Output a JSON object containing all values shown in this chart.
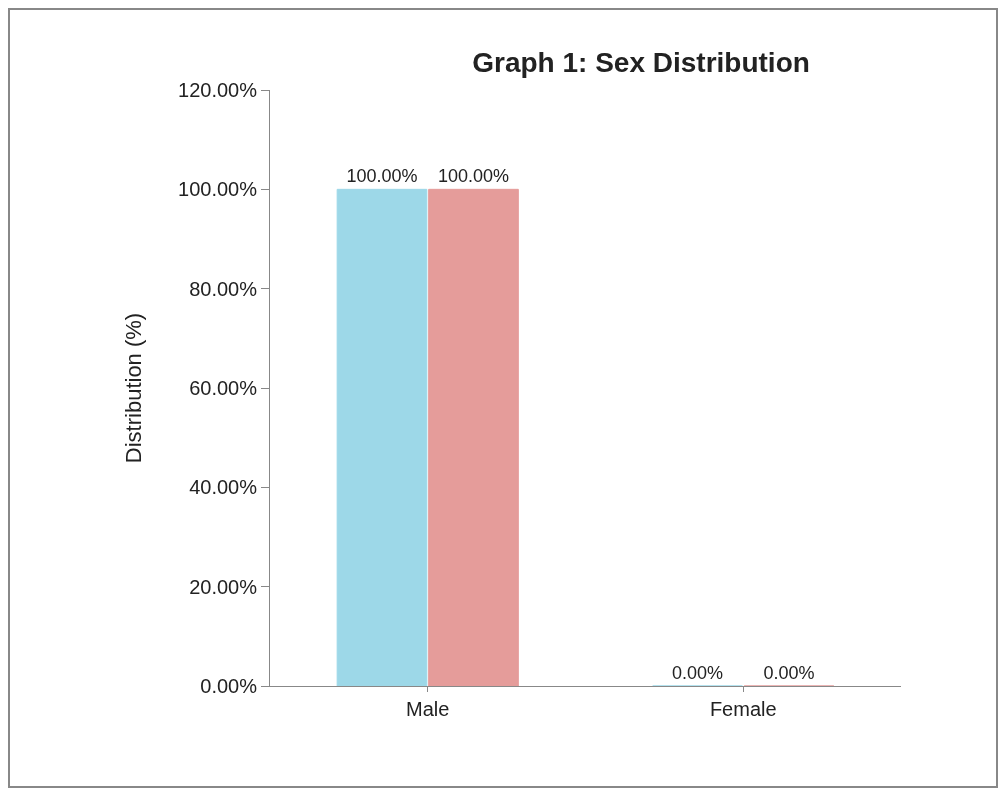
{
  "chart_data": {
    "type": "bar",
    "title": "Graph 1: Sex Distribution",
    "ylabel": "Distribution (%)",
    "categories": [
      "Male",
      "Female"
    ],
    "series": [
      {
        "color": "#9dd8e8",
        "values": [
          100,
          0
        ],
        "value_labels": [
          "100.00%",
          "0.00%"
        ]
      },
      {
        "color": "#e59c9a",
        "values": [
          100,
          0
        ],
        "value_labels": [
          "100.00%",
          "0.00%"
        ]
      }
    ],
    "ylim": [
      0,
      120
    ],
    "yticks": [
      {
        "value": 0,
        "label": "0.00%"
      },
      {
        "value": 20,
        "label": "20.00%"
      },
      {
        "value": 40,
        "label": "40.00%"
      },
      {
        "value": 60,
        "label": "60.00%"
      },
      {
        "value": 80,
        "label": "80.00%"
      },
      {
        "value": 100,
        "label": "100.00%"
      },
      {
        "value": 120,
        "label": "120.00%"
      }
    ],
    "grid": false
  }
}
